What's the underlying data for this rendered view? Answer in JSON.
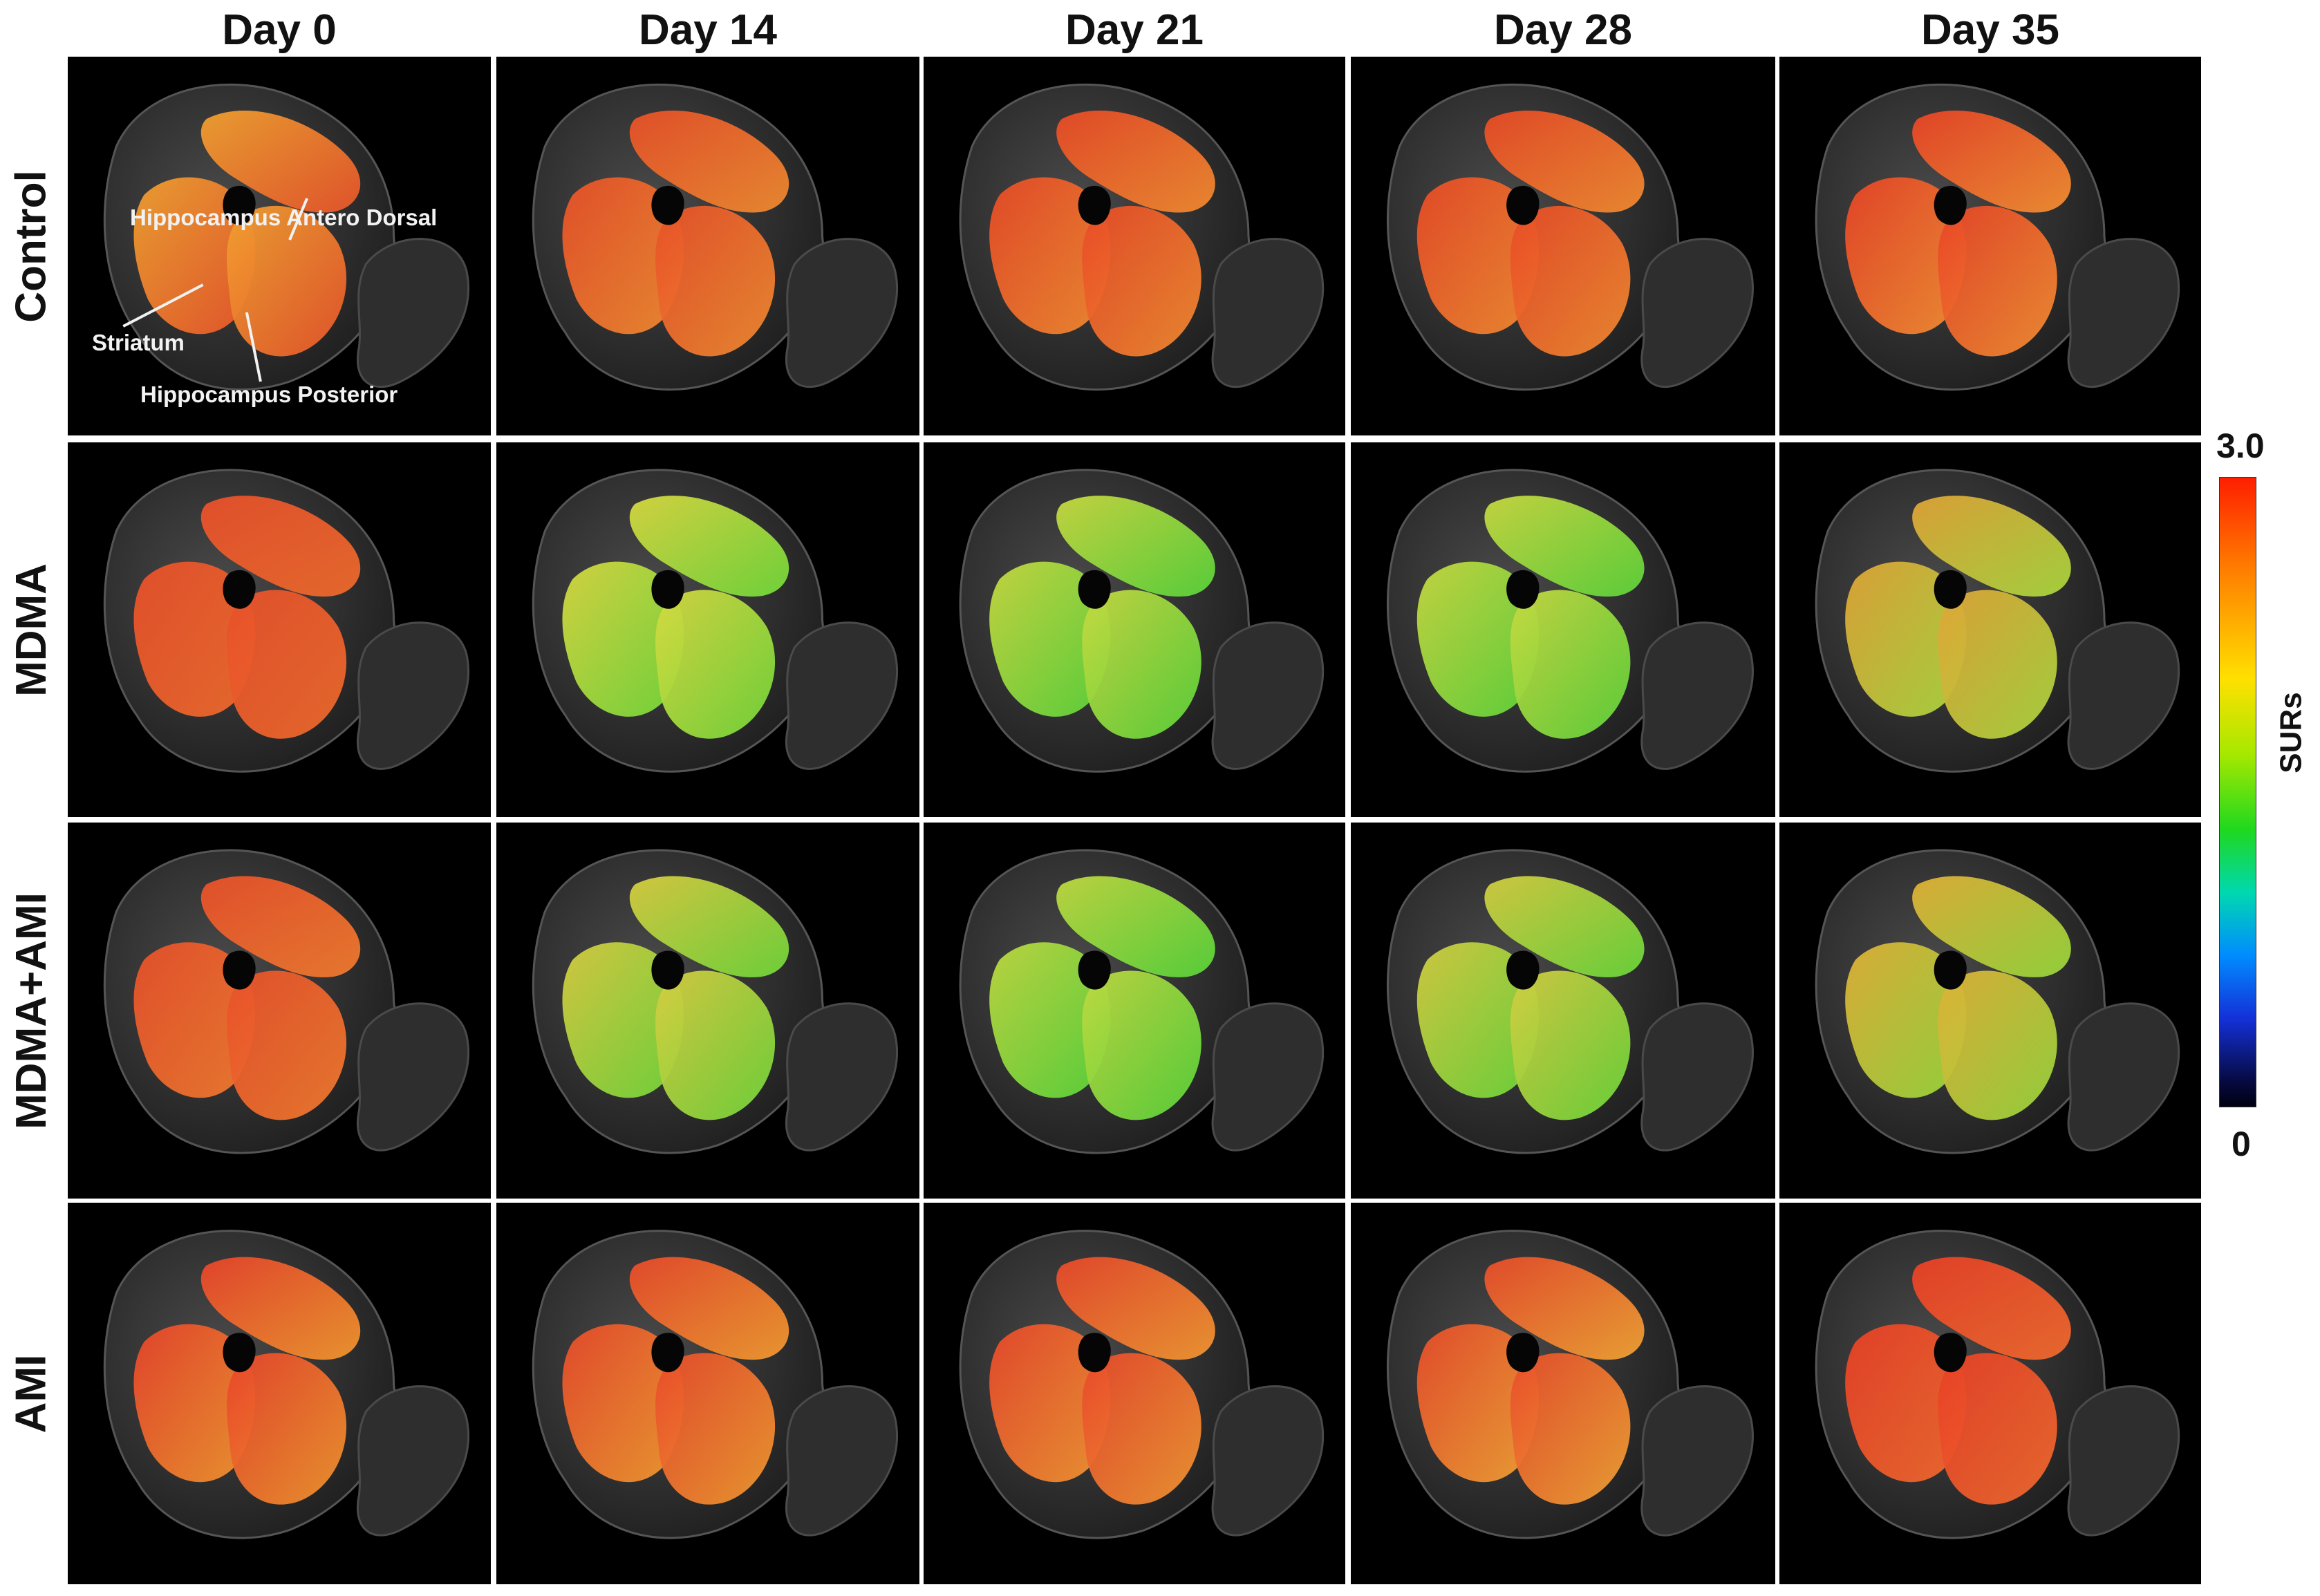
{
  "columns": [
    "Day 0",
    "Day 14",
    "Day 21",
    "Day 28",
    "Day 35"
  ],
  "rows": [
    "Control",
    "MDMA",
    "MDMA+AMI",
    "AMI"
  ],
  "region_labels": {
    "hippocampus_antero_dorsal": "Hippocampus Antero Dorsal",
    "striatum": "Striatum",
    "hippocampus_posterior": "Hippocampus Posterior"
  },
  "colorbar": {
    "title": "SURs",
    "max_label": "3.0",
    "min_label": "0",
    "min": 0,
    "max": 3.0
  },
  "panel_colors": [
    [
      [
        "#f0a030",
        "#e8552a"
      ],
      [
        "#e85028",
        "#ee8a30"
      ],
      [
        "#e84a26",
        "#f08a30"
      ],
      [
        "#e84a26",
        "#f08a30"
      ],
      [
        "#e84426",
        "#f28e32"
      ]
    ],
    [
      [
        "#e8502a",
        "#ec6a2c"
      ],
      [
        "#d8d840",
        "#72d83a"
      ],
      [
        "#c8d840",
        "#5ad43a"
      ],
      [
        "#c8d840",
        "#5ed43a"
      ],
      [
        "#e0a436",
        "#a8d63e"
      ]
    ],
    [
      [
        "#e8502a",
        "#ee7a2e"
      ],
      [
        "#d8cc40",
        "#70d63a"
      ],
      [
        "#c0d840",
        "#58d43a"
      ],
      [
        "#d4cc40",
        "#6ad63a"
      ],
      [
        "#e0b036",
        "#96d63c"
      ]
    ],
    [
      [
        "#e8442a",
        "#f0962e"
      ],
      [
        "#e84a2a",
        "#f09a30"
      ],
      [
        "#e8482a",
        "#f09632"
      ],
      [
        "#e84c2a",
        "#f0a234"
      ],
      [
        "#e84026",
        "#ee6a2e"
      ]
    ]
  ]
}
